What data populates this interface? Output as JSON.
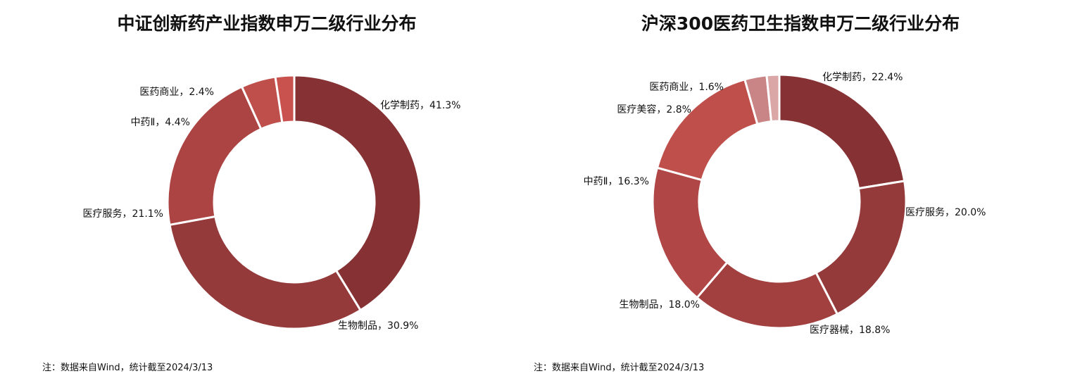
{
  "charts": [
    {
      "title": "中证创新药产业指数申万二级行业分布",
      "note": "注：数据来自Wind，统计截至2024/3/13"
    },
    {
      "title": "沪深300医药卫生指数申万二级行业分布",
      "note": "注：数据来自Wind，统计截至2024/3/13"
    }
  ],
  "chart_data": [
    {
      "type": "pie",
      "donut": true,
      "title": "中证创新药产业指数申万二级行业分布",
      "slices": [
        {
          "name": "化学制药",
          "value": 41.3,
          "label": "化学制药，41.3%",
          "color": "#863235"
        },
        {
          "name": "生物制品",
          "value": 30.9,
          "label": "生物制品，30.9%",
          "color": "#943a3b"
        },
        {
          "name": "医疗服务",
          "value": 21.1,
          "label": "医疗服务，21.1%",
          "color": "#ab4443"
        },
        {
          "name": "中药Ⅱ",
          "value": 4.4,
          "label": "中药Ⅱ，4.4%",
          "color": "#bf4f4b"
        },
        {
          "name": "医药商业",
          "value": 2.4,
          "label": "医药商业，2.4%",
          "color": "#c9524f"
        }
      ]
    },
    {
      "type": "pie",
      "donut": true,
      "title": "沪深300医药卫生指数申万二级行业分布",
      "slices": [
        {
          "name": "化学制药",
          "value": 22.4,
          "label": "化学制药，22.4%",
          "color": "#863235"
        },
        {
          "name": "医疗服务",
          "value": 20.0,
          "label": "医疗服务，20.0%",
          "color": "#943a3b"
        },
        {
          "name": "医疗器械",
          "value": 18.8,
          "label": "医疗器械，18.8%",
          "color": "#a23f3f"
        },
        {
          "name": "生物制品",
          "value": 18.0,
          "label": "生物制品，18.0%",
          "color": "#b04645"
        },
        {
          "name": "中药Ⅱ",
          "value": 16.3,
          "label": "中药Ⅱ，16.3%",
          "color": "#bf4f4b"
        },
        {
          "name": "医疗美容",
          "value": 2.8,
          "label": "医疗美容，2.8%",
          "color": "#c98585"
        },
        {
          "name": "医药商业",
          "value": 1.6,
          "label": "医药商业，1.6%",
          "color": "#dba6a6"
        }
      ]
    }
  ]
}
